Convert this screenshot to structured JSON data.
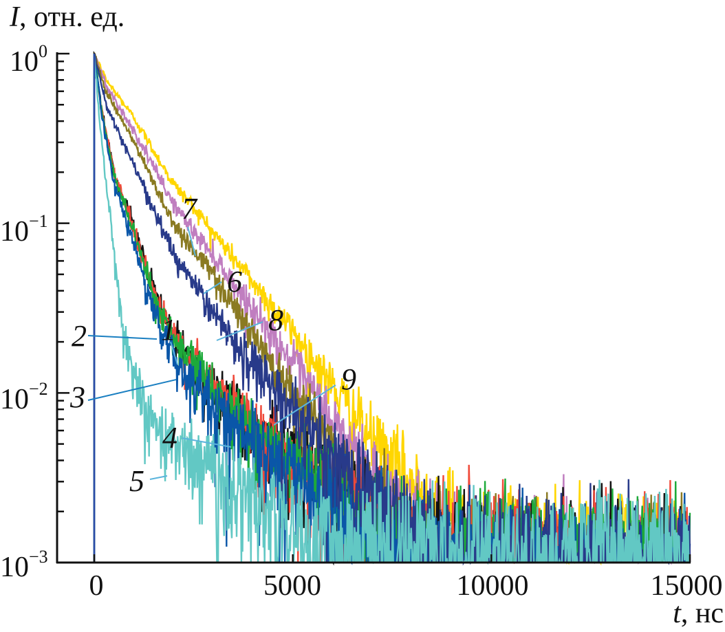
{
  "chart_data": {
    "type": "line",
    "title": "",
    "ylabel_symbol": "I",
    "ylabel_units": ", отн. ед.",
    "xlabel_symbol": "t",
    "xlabel_units": ", нс",
    "xlim": [
      -950,
      15000
    ],
    "ylim": [
      0.001,
      1
    ],
    "yscale": "log",
    "grid": false,
    "x_ticks": [
      {
        "value": 0,
        "label": "0"
      },
      {
        "value": 5000,
        "label": "5000"
      },
      {
        "value": 10000,
        "label": "10000"
      },
      {
        "value": 15000,
        "label": "15000"
      }
    ],
    "y_ticks": [
      {
        "value": 1,
        "base": "10",
        "exp": "0"
      },
      {
        "value": 0.1,
        "base": "10",
        "exp": "−1"
      },
      {
        "value": 0.01,
        "base": "10",
        "exp": "−2"
      },
      {
        "value": 0.001,
        "base": "10",
        "exp": "−3"
      }
    ],
    "series": [
      {
        "name": "7",
        "color": "#FFD600",
        "points": [
          [
            0,
            1
          ],
          [
            300,
            0.7
          ],
          [
            1000,
            0.42
          ],
          [
            2000,
            0.17
          ],
          [
            2500,
            0.125
          ],
          [
            3000,
            0.088
          ],
          [
            4000,
            0.045
          ],
          [
            5000,
            0.023
          ],
          [
            6000,
            0.011
          ],
          [
            7000,
            0.0053
          ],
          [
            8000,
            0.0028
          ],
          [
            9000,
            0.0017
          ],
          [
            10000,
            0.0011
          ],
          [
            15000,
            0.0009
          ]
        ]
      },
      {
        "name": "6",
        "color": "#C07EC0",
        "points": [
          [
            0,
            1
          ],
          [
            300,
            0.65
          ],
          [
            1000,
            0.35
          ],
          [
            2000,
            0.13
          ],
          [
            2500,
            0.09
          ],
          [
            3000,
            0.065
          ],
          [
            4000,
            0.031
          ],
          [
            5000,
            0.015
          ],
          [
            6000,
            0.0068
          ],
          [
            7000,
            0.0031
          ],
          [
            8000,
            0.0016
          ],
          [
            9000,
            0.001
          ],
          [
            15000,
            0.0008
          ]
        ]
      },
      {
        "name": "8",
        "color": "#8A7A22",
        "points": [
          [
            0,
            1
          ],
          [
            300,
            0.6
          ],
          [
            1000,
            0.3
          ],
          [
            2000,
            0.1
          ],
          [
            2500,
            0.07
          ],
          [
            3000,
            0.05
          ],
          [
            4000,
            0.022
          ],
          [
            5000,
            0.0105
          ],
          [
            6000,
            0.0048
          ],
          [
            7000,
            0.0021
          ],
          [
            8000,
            0.0012
          ],
          [
            9000,
            0.0009
          ],
          [
            15000,
            0.0008
          ]
        ]
      },
      {
        "name": "1",
        "color": "#111111",
        "points": [
          [
            0,
            1
          ],
          [
            200,
            0.45
          ],
          [
            500,
            0.2
          ],
          [
            1000,
            0.095
          ],
          [
            1500,
            0.04
          ],
          [
            2000,
            0.021
          ],
          [
            3000,
            0.011
          ],
          [
            4000,
            0.0065
          ],
          [
            5000,
            0.0042
          ],
          [
            6000,
            0.0026
          ],
          [
            7000,
            0.0016
          ],
          [
            8000,
            0.0011
          ],
          [
            15000,
            0.0009
          ]
        ]
      },
      {
        "name": "2",
        "color": "#F04A3A",
        "points": [
          [
            0,
            1
          ],
          [
            200,
            0.45
          ],
          [
            500,
            0.2
          ],
          [
            1000,
            0.093
          ],
          [
            1500,
            0.039
          ],
          [
            2000,
            0.021
          ],
          [
            3000,
            0.011
          ],
          [
            4000,
            0.0064
          ],
          [
            5000,
            0.0041
          ],
          [
            6000,
            0.0025
          ],
          [
            7000,
            0.0016
          ],
          [
            8000,
            0.0011
          ],
          [
            15000,
            0.0009
          ]
        ]
      },
      {
        "name": "3",
        "color": "#1DAA3A",
        "points": [
          [
            0,
            1
          ],
          [
            200,
            0.44
          ],
          [
            500,
            0.19
          ],
          [
            1000,
            0.09
          ],
          [
            1500,
            0.037
          ],
          [
            2000,
            0.02
          ],
          [
            3000,
            0.0105
          ],
          [
            4000,
            0.0062
          ],
          [
            5000,
            0.004
          ],
          [
            6000,
            0.0025
          ],
          [
            7000,
            0.0016
          ],
          [
            8000,
            0.0011
          ],
          [
            15000,
            0.0009
          ]
        ]
      },
      {
        "name": "4",
        "color": "#0A56A8",
        "points": [
          [
            0,
            1
          ],
          [
            200,
            0.42
          ],
          [
            500,
            0.17
          ],
          [
            1000,
            0.075
          ],
          [
            1500,
            0.03
          ],
          [
            2000,
            0.016
          ],
          [
            3000,
            0.0085
          ],
          [
            4000,
            0.0052
          ],
          [
            5000,
            0.0034
          ],
          [
            6000,
            0.0022
          ],
          [
            7000,
            0.0014
          ],
          [
            8000,
            0.001
          ],
          [
            15000,
            0.0008
          ]
        ]
      },
      {
        "name": "9",
        "color": "#283A8A",
        "points": [
          [
            0,
            1
          ],
          [
            300,
            0.5
          ],
          [
            1000,
            0.22
          ],
          [
            2000,
            0.065
          ],
          [
            3000,
            0.03
          ],
          [
            4000,
            0.015
          ],
          [
            5000,
            0.008
          ],
          [
            6000,
            0.0043
          ],
          [
            7000,
            0.0025
          ],
          [
            8000,
            0.0015
          ],
          [
            9000,
            0.001
          ],
          [
            15000,
            0.0008
          ]
        ]
      },
      {
        "name": "5",
        "color": "#62C8C4",
        "points": [
          [
            0,
            1
          ],
          [
            100,
            0.5
          ],
          [
            250,
            0.22
          ],
          [
            500,
            0.07
          ],
          [
            700,
            0.025
          ],
          [
            1000,
            0.012
          ],
          [
            1500,
            0.0068
          ],
          [
            2000,
            0.0052
          ],
          [
            3000,
            0.0034
          ],
          [
            4000,
            0.0023
          ],
          [
            5000,
            0.0016
          ],
          [
            6000,
            0.0012
          ],
          [
            8000,
            0.0011
          ],
          [
            15000,
            0.0011
          ]
        ]
      }
    ],
    "annotations": [
      {
        "label": "7",
        "series": "7"
      },
      {
        "label": "6",
        "series": "6"
      },
      {
        "label": "8",
        "series": "8"
      },
      {
        "label": "1",
        "series": "1"
      },
      {
        "label": "2",
        "series": "2"
      },
      {
        "label": "3",
        "series": "3"
      },
      {
        "label": "9",
        "series": "9"
      },
      {
        "label": "4",
        "series": "4"
      },
      {
        "label": "5",
        "series": "5"
      }
    ],
    "leader_color": "#5AB4DC",
    "leader_color_dark": "#1A7FC1",
    "excitation_line_color": "#2A4AA8"
  }
}
